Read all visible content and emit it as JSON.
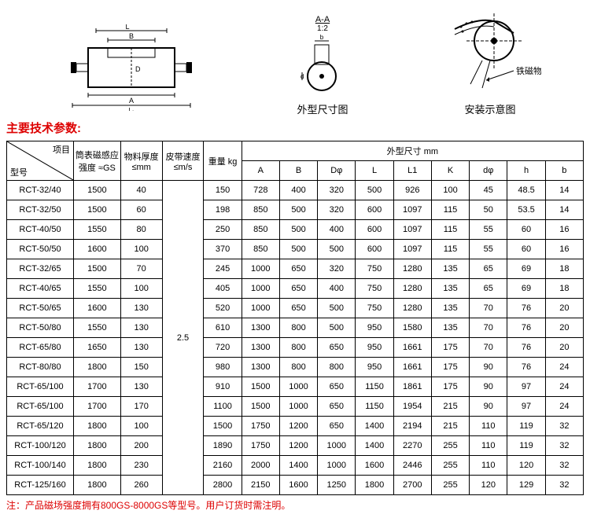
{
  "diagrams": {
    "section_label_a": "A-A",
    "scale": "1:2",
    "caption1": "外型尺寸图",
    "caption2": "安装示意图",
    "arrow_label": "铁磁物"
  },
  "section_title": "主要技术参数:",
  "table": {
    "header": {
      "diag_top": "项目",
      "diag_bot": "型号",
      "col1": "筒表磁感应强度 ≈GS",
      "col2": "物料厚度 ≤mm",
      "col3": "皮带速度 ≤m/s",
      "col4": "重量 kg",
      "group": "外型尺寸 mm",
      "sub": [
        "A",
        "B",
        "Dφ",
        "L",
        "L1",
        "K",
        "dφ",
        "h",
        "b"
      ]
    },
    "belt_speed": "2.5",
    "rows": [
      {
        "model": "RCT-32/40",
        "gs": "1500",
        "thk": "40",
        "kg": "150",
        "A": "728",
        "B": "400",
        "D": "320",
        "L": "500",
        "L1": "926",
        "K": "100",
        "d": "45",
        "h": "48.5",
        "b": "14"
      },
      {
        "model": "RCT-32/50",
        "gs": "1500",
        "thk": "60",
        "kg": "198",
        "A": "850",
        "B": "500",
        "D": "320",
        "L": "600",
        "L1": "1097",
        "K": "115",
        "d": "50",
        "h": "53.5",
        "b": "14"
      },
      {
        "model": "RCT-40/50",
        "gs": "1550",
        "thk": "80",
        "kg": "250",
        "A": "850",
        "B": "500",
        "D": "400",
        "L": "600",
        "L1": "1097",
        "K": "115",
        "d": "55",
        "h": "60",
        "b": "16"
      },
      {
        "model": "RCT-50/50",
        "gs": "1600",
        "thk": "100",
        "kg": "370",
        "A": "850",
        "B": "500",
        "D": "500",
        "L": "600",
        "L1": "1097",
        "K": "115",
        "d": "55",
        "h": "60",
        "b": "16"
      },
      {
        "model": "RCT-32/65",
        "gs": "1500",
        "thk": "70",
        "kg": "245",
        "A": "1000",
        "B": "650",
        "D": "320",
        "L": "750",
        "L1": "1280",
        "K": "135",
        "d": "65",
        "h": "69",
        "b": "18"
      },
      {
        "model": "RCT-40/65",
        "gs": "1550",
        "thk": "100",
        "kg": "405",
        "A": "1000",
        "B": "650",
        "D": "400",
        "L": "750",
        "L1": "1280",
        "K": "135",
        "d": "65",
        "h": "69",
        "b": "18"
      },
      {
        "model": "RCT-50/65",
        "gs": "1600",
        "thk": "130",
        "kg": "520",
        "A": "1000",
        "B": "650",
        "D": "500",
        "L": "750",
        "L1": "1280",
        "K": "135",
        "d": "70",
        "h": "76",
        "b": "20"
      },
      {
        "model": "RCT-50/80",
        "gs": "1550",
        "thk": "130",
        "kg": "610",
        "A": "1300",
        "B": "800",
        "D": "500",
        "L": "950",
        "L1": "1580",
        "K": "135",
        "d": "70",
        "h": "76",
        "b": "20"
      },
      {
        "model": "RCT-65/80",
        "gs": "1650",
        "thk": "130",
        "kg": "720",
        "A": "1300",
        "B": "800",
        "D": "650",
        "L": "950",
        "L1": "1661",
        "K": "175",
        "d": "70",
        "h": "76",
        "b": "20"
      },
      {
        "model": "RCT-80/80",
        "gs": "1800",
        "thk": "150",
        "kg": "980",
        "A": "1300",
        "B": "800",
        "D": "800",
        "L": "950",
        "L1": "1661",
        "K": "175",
        "d": "90",
        "h": "76",
        "b": "24"
      },
      {
        "model": "RCT-65/100",
        "gs": "1700",
        "thk": "130",
        "kg": "910",
        "A": "1500",
        "B": "1000",
        "D": "650",
        "L": "1150",
        "L1": "1861",
        "K": "175",
        "d": "90",
        "h": "97",
        "b": "24"
      },
      {
        "model": "RCT-65/100",
        "gs": "1700",
        "thk": "170",
        "kg": "1100",
        "A": "1500",
        "B": "1000",
        "D": "650",
        "L": "1150",
        "L1": "1954",
        "K": "215",
        "d": "90",
        "h": "97",
        "b": "24"
      },
      {
        "model": "RCT-65/120",
        "gs": "1800",
        "thk": "100",
        "kg": "1500",
        "A": "1750",
        "B": "1200",
        "D": "650",
        "L": "1400",
        "L1": "2194",
        "K": "215",
        "d": "110",
        "h": "119",
        "b": "32"
      },
      {
        "model": "RCT-100/120",
        "gs": "1800",
        "thk": "200",
        "kg": "1890",
        "A": "1750",
        "B": "1200",
        "D": "1000",
        "L": "1400",
        "L1": "2270",
        "K": "255",
        "d": "110",
        "h": "119",
        "b": "32"
      },
      {
        "model": "RCT-100/140",
        "gs": "1800",
        "thk": "230",
        "kg": "2160",
        "A": "2000",
        "B": "1400",
        "D": "1000",
        "L": "1600",
        "L1": "2446",
        "K": "255",
        "d": "110",
        "h": "120",
        "b": "32"
      },
      {
        "model": "RCT-125/160",
        "gs": "1800",
        "thk": "260",
        "kg": "2800",
        "A": "2150",
        "B": "1600",
        "D": "1250",
        "L": "1800",
        "L1": "2700",
        "K": "255",
        "d": "120",
        "h": "129",
        "b": "32"
      }
    ]
  },
  "footnote": "注：产品磁场强度拥有800GS-8000GS等型号。用户订货时需注明。"
}
